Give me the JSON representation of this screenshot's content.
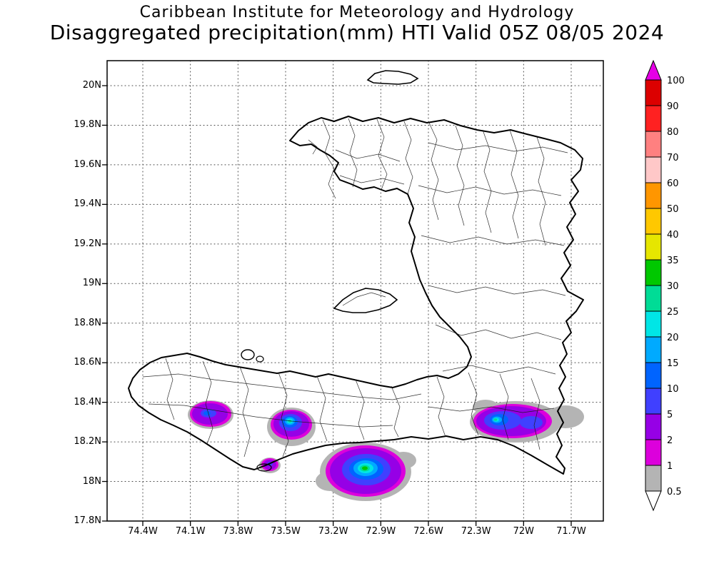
{
  "header": {
    "title_line1": "Caribbean Institute for Meteorology and Hydrology",
    "title_line2": "Disaggregated precipitation(mm) HTI Valid 05Z 08/05 2024"
  },
  "axes": {
    "lat_ticks": [
      "20N",
      "19.8N",
      "19.6N",
      "19.4N",
      "19.2N",
      "19N",
      "18.8N",
      "18.6N",
      "18.4N",
      "18.2N",
      "18N",
      "17.8N"
    ],
    "lon_ticks": [
      "74.4W",
      "74.1W",
      "73.8W",
      "73.5W",
      "73.2W",
      "72.9W",
      "72.6W",
      "72.3W",
      "72W",
      "71.7W"
    ]
  },
  "legend": {
    "labels": [
      "100",
      "90",
      "80",
      "70",
      "60",
      "50",
      "40",
      "35",
      "30",
      "25",
      "20",
      "15",
      "10",
      "5",
      "2",
      "1",
      "0.5"
    ],
    "bands": [
      {
        "range": "90-100",
        "color": "#dc0000"
      },
      {
        "range": "80-90",
        "color": "#ff2121"
      },
      {
        "range": "70-80",
        "color": "#ff8080"
      },
      {
        "range": "60-70",
        "color": "#ffc8c8"
      },
      {
        "range": "50-60",
        "color": "#ff9600"
      },
      {
        "range": "40-50",
        "color": "#ffc800"
      },
      {
        "range": "35-40",
        "color": "#e6e600"
      },
      {
        "range": "30-35",
        "color": "#00c800"
      },
      {
        "range": "25-30",
        "color": "#00dc96"
      },
      {
        "range": "20-25",
        "color": "#00e6e6"
      },
      {
        "range": "15-20",
        "color": "#00aaff"
      },
      {
        "range": "10-15",
        "color": "#0064ff"
      },
      {
        "range": "5-10",
        "color": "#4040ff"
      },
      {
        "range": "2-5",
        "color": "#9600e6"
      },
      {
        "range": "1-2",
        "color": "#dc00dc"
      },
      {
        "range": "0.5-1",
        "color": "#b4b4b4"
      }
    ],
    "arrow_top_color": "#e600e6",
    "arrow_bottom_color": "#ffffff"
  },
  "chart_data": {
    "type": "heatmap",
    "title": "Disaggregated precipitation(mm) HTI Valid 05Z 08/05 2024",
    "source": "Caribbean Institute for Meteorology and Hydrology",
    "region": "Haiti (HTI)",
    "units": "mm",
    "valid_time": "05Z 08/05 2024",
    "lat_range_deg_n": [
      17.8,
      20.1
    ],
    "lon_range_deg_w": [
      74.6,
      71.5
    ],
    "scale_levels_mm": [
      0.5,
      1,
      2,
      5,
      10,
      15,
      20,
      25,
      30,
      35,
      40,
      50,
      60,
      70,
      80,
      90,
      100
    ],
    "grid": "dotted, 0.2 deg lat x 0.3 deg lon",
    "legend_position": "right",
    "precip_features": [
      {
        "lon": "74.0W",
        "lat": "18.34N",
        "peak_mm": 15,
        "note": "small cell, western Tiburon peninsula"
      },
      {
        "lon": "73.5W",
        "lat": "18.30N",
        "peak_mm": 30,
        "note": "cell with cyan-green core near south coast"
      },
      {
        "lon": "73.6W",
        "lat": "18.08N",
        "peak_mm": 10,
        "note": "tiny offshore cell near Ile-a-Vache"
      },
      {
        "lon": "72.95W",
        "lat": "18.05N",
        "peak_mm": 35,
        "note": "largest cell, offshore south coast, green core"
      },
      {
        "lon": "72.05W",
        "lat": "18.30N",
        "peak_mm": 30,
        "note": "elongated cell near SE border, gray fringe to east"
      }
    ]
  }
}
